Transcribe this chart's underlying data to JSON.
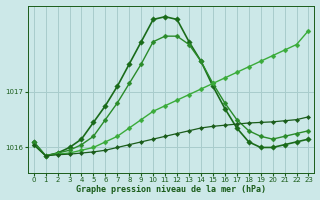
{
  "background_color": "#cce8e8",
  "grid_color": "#a8cccc",
  "text_color": "#1a5c1a",
  "ylim": [
    1015.55,
    1018.55
  ],
  "xlim": [
    -0.5,
    23.5
  ],
  "yticks": [
    1016,
    1017
  ],
  "xticks": [
    0,
    1,
    2,
    3,
    4,
    5,
    6,
    7,
    8,
    9,
    10,
    11,
    12,
    13,
    14,
    15,
    16,
    17,
    18,
    19,
    20,
    21,
    22,
    23
  ],
  "xlabel": "Graphe pression niveau de la mer (hPa)",
  "series": [
    {
      "x": [
        0,
        1,
        2,
        3,
        4,
        5,
        6,
        7,
        8,
        9,
        10,
        11,
        12,
        13,
        14,
        15,
        16,
        17,
        18,
        19,
        20,
        21,
        22,
        23
      ],
      "y": [
        1016.1,
        1015.85,
        1015.9,
        1016.0,
        1016.15,
        1016.45,
        1016.75,
        1017.1,
        1017.5,
        1017.9,
        1018.3,
        1018.35,
        1018.3,
        1017.9,
        1017.55,
        1017.1,
        1016.7,
        1016.35,
        1016.1,
        1016.0,
        1016.0,
        1016.05,
        1016.1,
        1016.15
      ],
      "color": "#1a6b1a",
      "linewidth": 1.2,
      "marker": "D",
      "markersize": 2.8
    },
    {
      "x": [
        0,
        1,
        2,
        3,
        4,
        5,
        6,
        7,
        8,
        9,
        10,
        11,
        12,
        13,
        14,
        15,
        16,
        17,
        18,
        19,
        20,
        21,
        22,
        23
      ],
      "y": [
        1016.1,
        1015.85,
        1015.9,
        1015.95,
        1016.05,
        1016.2,
        1016.5,
        1016.8,
        1017.15,
        1017.5,
        1017.9,
        1018.0,
        1018.0,
        1017.85,
        1017.55,
        1017.15,
        1016.8,
        1016.5,
        1016.3,
        1016.2,
        1016.15,
        1016.2,
        1016.25,
        1016.3
      ],
      "color": "#2a8b2a",
      "linewidth": 1.0,
      "marker": "D",
      "markersize": 2.5
    },
    {
      "x": [
        0,
        1,
        2,
        3,
        4,
        5,
        6,
        7,
        8,
        9,
        10,
        11,
        12,
        13,
        14,
        15,
        16,
        17,
        18,
        19,
        20,
        21,
        22,
        23
      ],
      "y": [
        1016.05,
        1015.85,
        1015.88,
        1015.9,
        1015.95,
        1016.0,
        1016.1,
        1016.2,
        1016.35,
        1016.5,
        1016.65,
        1016.75,
        1016.85,
        1016.95,
        1017.05,
        1017.15,
        1017.25,
        1017.35,
        1017.45,
        1017.55,
        1017.65,
        1017.75,
        1017.85,
        1018.1
      ],
      "color": "#3aab3a",
      "linewidth": 1.0,
      "marker": "D",
      "markersize": 2.5
    },
    {
      "x": [
        0,
        1,
        2,
        3,
        4,
        5,
        6,
        7,
        8,
        9,
        10,
        11,
        12,
        13,
        14,
        15,
        16,
        17,
        18,
        19,
        20,
        21,
        22,
        23
      ],
      "y": [
        1016.05,
        1015.85,
        1015.87,
        1015.88,
        1015.9,
        1015.92,
        1015.95,
        1016.0,
        1016.05,
        1016.1,
        1016.15,
        1016.2,
        1016.25,
        1016.3,
        1016.35,
        1016.38,
        1016.4,
        1016.42,
        1016.44,
        1016.45,
        1016.46,
        1016.48,
        1016.5,
        1016.55
      ],
      "color": "#1a5c1a",
      "linewidth": 0.9,
      "marker": "D",
      "markersize": 2.2
    }
  ]
}
